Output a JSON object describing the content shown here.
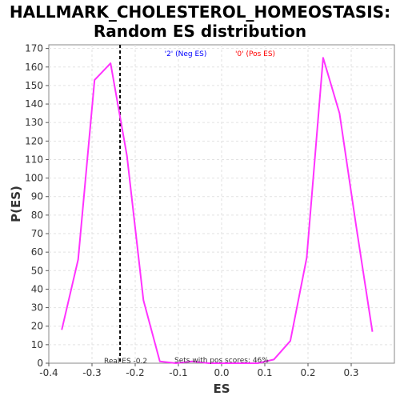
{
  "chart_data": {
    "type": "line",
    "title_line1": "HALLMARK_CHOLESTEROL_HOMEOSTASIS:",
    "title_line2": "Random ES distribution",
    "xlabel": "ES",
    "ylabel": "P(ES)",
    "xlim": [
      -0.4,
      0.4
    ],
    "ylim": [
      0,
      172
    ],
    "x_ticks": [
      -0.4,
      -0.3,
      -0.2,
      -0.1,
      0.0,
      0.1,
      0.2,
      0.3
    ],
    "x_tick_labels": [
      "-0.4",
      "-0.3",
      "-0.2",
      "-0.1",
      "0.0",
      "0.1",
      "0.2",
      "0.3"
    ],
    "y_ticks": [
      0,
      10,
      20,
      30,
      40,
      50,
      60,
      70,
      80,
      90,
      100,
      110,
      120,
      130,
      140,
      150,
      160,
      170
    ],
    "grid": true,
    "series": [
      {
        "color": "#ff33ff",
        "x": [
          -0.37,
          -0.332,
          -0.294,
          -0.257,
          -0.219,
          -0.181,
          -0.143,
          -0.106,
          -0.068,
          -0.03,
          0.008,
          0.046,
          0.084,
          0.121,
          0.159,
          0.197,
          0.235,
          0.273,
          0.311,
          0.349
        ],
        "y": [
          18,
          56,
          153,
          162,
          112,
          34,
          1,
          0,
          1,
          0,
          0,
          0,
          0,
          2,
          12,
          57,
          165,
          135,
          75,
          17
        ]
      }
    ],
    "real_es": -0.235,
    "real_es_label": "Real ES -0.2",
    "neg_label": "'2' (Neg ES)",
    "neg_color": "#0000ff",
    "pos_label": "'0' (Pos ES)",
    "pos_color": "#ff0000",
    "pos_scores_label": "Sets with pos scores: 46%"
  }
}
